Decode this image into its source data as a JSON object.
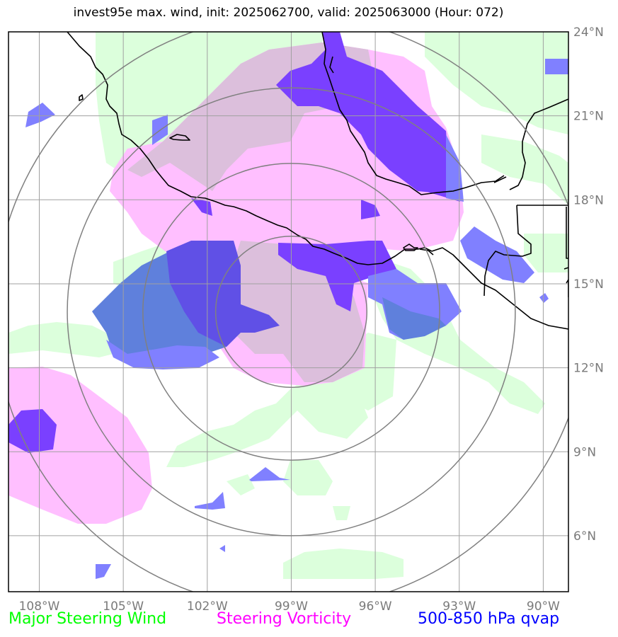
{
  "title": "invest95e max. wind, init: 2025062700, valid: 2025063000 (Hour: 072)",
  "map": {
    "lon_range": [
      -109.1,
      -89.1
    ],
    "lat_range": [
      4.0,
      24.0
    ],
    "lon_ticks": [
      -108,
      -105,
      -102,
      -99,
      -96,
      -93,
      -90
    ],
    "lat_ticks": [
      24,
      21,
      18,
      15,
      12,
      9,
      6
    ],
    "lon_tick_labels": [
      "108°W",
      "105°W",
      "102°W",
      "99°W",
      "96°W",
      "93°W",
      "90°W"
    ],
    "lat_tick_labels": [
      "24°N",
      "21°N",
      "18°N",
      "15°N",
      "12°N",
      "9°N",
      "6°N"
    ],
    "storm_center": {
      "lon": -99.0,
      "lat": 14.0
    },
    "range_rings": [
      2.7,
      5.3,
      8.0,
      10.6
    ],
    "grid": true,
    "colors": {
      "wind": "#dcffdc",
      "vorticity": "#ffbfff",
      "overlap": "#dcbfdc",
      "qvap_light": "#8080ff",
      "qvap_dark": "#7a40ff",
      "qvap_overlap": "#5f80dc",
      "ring": "#808080",
      "grid": "#a0a0a0",
      "coast": "#000000"
    }
  },
  "legend": {
    "wind": {
      "label": "Major Steering Wind",
      "color": "#00ff00"
    },
    "vorticity": {
      "label": "Steering Vorticity",
      "color": "#ff00ff"
    },
    "qvap": {
      "label": "500-850 hPa qvap",
      "color": "#0000ff"
    }
  }
}
